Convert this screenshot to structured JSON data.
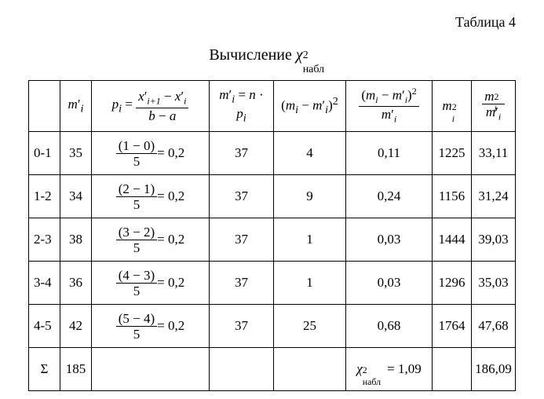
{
  "label": "Таблица 4",
  "title_prefix": "Вычисление ",
  "title_symbol": "χ",
  "title_sup": "2",
  "title_sub": "набл",
  "headers": {
    "col0": "",
    "col1_base": "m",
    "col1_sub": "i",
    "col1_prime": "′",
    "col2_lhs_base": "p",
    "col2_lhs_sub": "i",
    "col2_eq": " = ",
    "col2_num_x1_base": "x",
    "col2_num_x1_sub": "i+1",
    "col2_num_x1_prime": "′",
    "col2_num_minus": " − ",
    "col2_num_x2_base": "x",
    "col2_num_x2_sub": "i",
    "col2_num_x2_prime": "′",
    "col2_den_b": "b",
    "col2_den_minus": " − ",
    "col2_den_a": "a",
    "col3_base": "m",
    "col3_sub": "i",
    "col3_prime": "′",
    "col3_eq": " = ",
    "col3_n": "n",
    "col3_dot": " · ",
    "col3_p_base": "p",
    "col3_p_sub": "i",
    "col4_open": "(",
    "col4_m1_base": "m",
    "col4_m1_sub": "i",
    "col4_minus": " − ",
    "col4_m2_base": "m",
    "col4_m2_sub": "i",
    "col4_m2_prime": "′",
    "col4_close": ")",
    "col4_sup": "2",
    "col5_num_open": "(",
    "col5_num_m1_base": "m",
    "col5_num_m1_sub": "i",
    "col5_num_minus": " − ",
    "col5_num_m2_base": "m",
    "col5_num_m2_sub": "i",
    "col5_num_m2_prime": "′",
    "col5_num_close": ")",
    "col5_num_sup": "2",
    "col5_den_base": "m",
    "col5_den_sub": "i",
    "col5_den_prime": "′",
    "col6_base": "m",
    "col6_sub": "i",
    "col6_sup": "2",
    "col7_num_base": "m",
    "col7_num_sub": "i",
    "col7_num_sup": "2",
    "col7_den_base": "m",
    "col7_den_sub": "i",
    "col7_den_prime": "′"
  },
  "rows": [
    {
      "range": "0-1",
      "mp": "35",
      "frac_num": "(1 − 0)",
      "frac_den": "5",
      "frac_res": " = 0,2",
      "np": "37",
      "sq": "4",
      "ratio": "0,11",
      "m2": "1225",
      "quot": "33,11"
    },
    {
      "range": "1-2",
      "mp": "34",
      "frac_num": "(2 − 1)",
      "frac_den": "5",
      "frac_res": " = 0,2",
      "np": "37",
      "sq": "9",
      "ratio": "0,24",
      "m2": "1156",
      "quot": "31,24"
    },
    {
      "range": "2-3",
      "mp": "38",
      "frac_num": "(3 − 2)",
      "frac_den": "5",
      "frac_res": " = 0,2",
      "np": "37",
      "sq": "1",
      "ratio": "0,03",
      "m2": "1444",
      "quot": "39,03"
    },
    {
      "range": "3-4",
      "mp": "36",
      "frac_num": "(4 − 3)",
      "frac_den": "5",
      "frac_res": " = 0,2",
      "np": "37",
      "sq": "1",
      "ratio": "0,03",
      "m2": "1296",
      "quot": "35,03"
    },
    {
      "range": "4-5",
      "mp": "42",
      "frac_num": "(5 − 4)",
      "frac_den": "5",
      "frac_res": " = 0,2",
      "np": "37",
      "sq": "25",
      "ratio": "0,68",
      "m2": "1764",
      "quot": "47,68"
    }
  ],
  "sum": {
    "sigma": "Σ",
    "mp": "185",
    "pi": "",
    "np": "",
    "sq": "",
    "chi_base": "χ",
    "chi_sup": "2",
    "chi_sub": "набл",
    "chi_eq": " = 1,09",
    "m2": "",
    "quot": "186,09"
  }
}
